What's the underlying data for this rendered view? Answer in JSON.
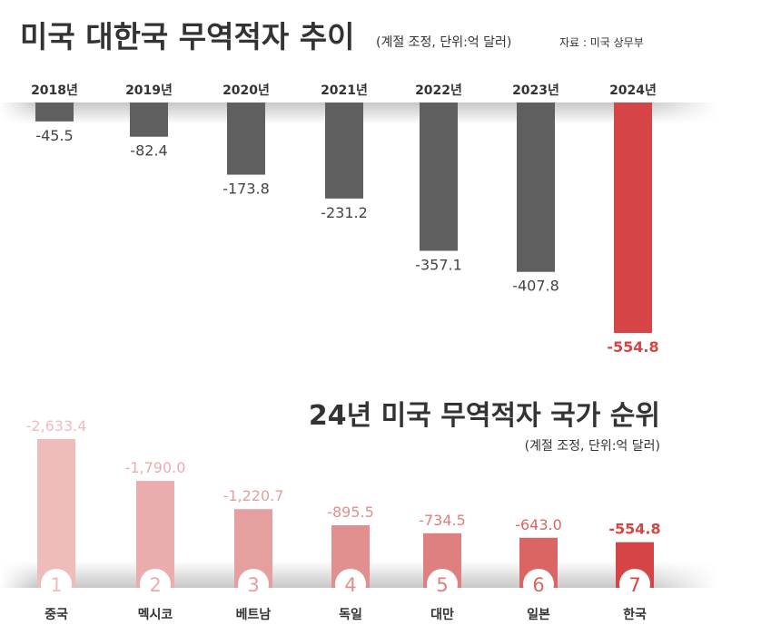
{
  "chart_data": [
    {
      "type": "bar",
      "title": "미국 대한국 무역적자 추이",
      "subtitle": "(계절 조정, 단위:억 달러)",
      "source": "자료 : 미국 상무부",
      "categories": [
        "2018년",
        "2019년",
        "2020년",
        "2021년",
        "2022년",
        "2023년",
        "2024년"
      ],
      "values": [
        -45.5,
        -82.4,
        -173.8,
        -231.2,
        -357.1,
        -407.8,
        -554.8
      ],
      "labels": [
        "-45.5",
        "-82.4",
        "-173.8",
        "-231.2",
        "-357.1",
        "-407.8",
        "-554.8"
      ],
      "ylim": [
        -554.8,
        0
      ],
      "colors": {
        "default": "#5f5f5f",
        "highlight": "#d64545"
      }
    },
    {
      "type": "bar",
      "title": "24년 미국 무역적자 국가 순위",
      "subtitle": "(계절 조정, 단위:억 달러)",
      "categories": [
        "중국",
        "멕시코",
        "베트남",
        "독일",
        "대만",
        "일본",
        "한국"
      ],
      "ranks": [
        "1",
        "2",
        "3",
        "4",
        "5",
        "6",
        "7"
      ],
      "values": [
        -2633.4,
        -1790.0,
        -1220.7,
        -895.5,
        -734.5,
        -643.0,
        -554.8
      ],
      "labels": [
        "-2,633.4",
        "-1,790.0",
        "-1,220.7",
        "-895.5",
        "-734.5",
        "-643.0",
        "-554.8"
      ],
      "ylim": [
        -2633.4,
        0
      ],
      "colors": [
        "#efbcbc",
        "#eaadad",
        "#e69f9f",
        "#e28f8f",
        "#df8080",
        "#db6565",
        "#d64545"
      ]
    }
  ]
}
